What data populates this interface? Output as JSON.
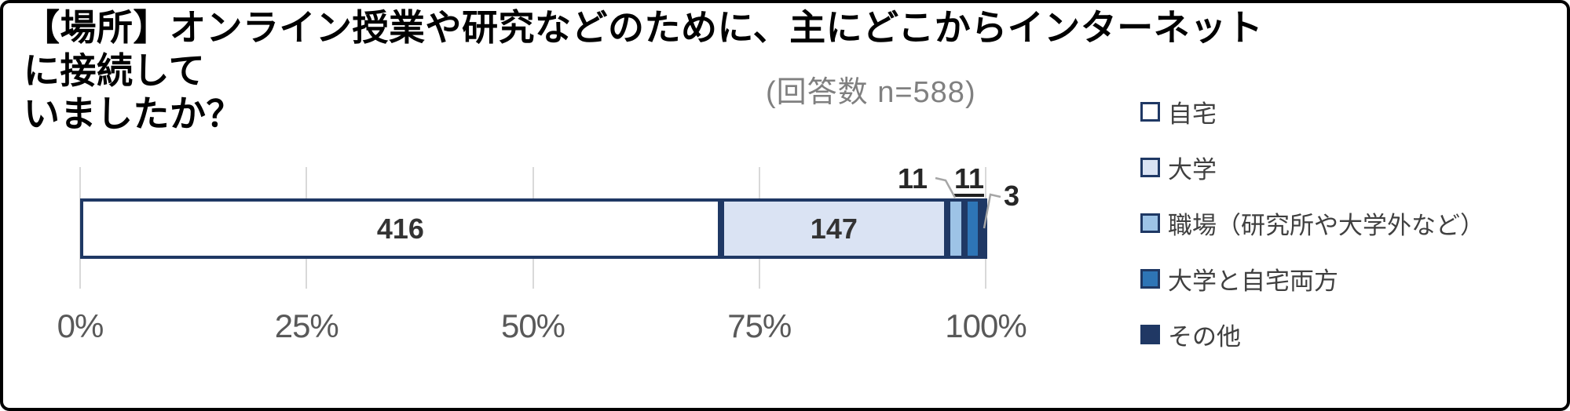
{
  "header": {
    "title_line1": "【場所】オンライン授業や研究などのために、主にどこからインターネットに接続して",
    "title_line2": "いましたか？",
    "subtitle": "(回答数 n=588)"
  },
  "chart_data": {
    "type": "bar",
    "orientation": "horizontal_stacked",
    "title": "【場所】オンライン授業や研究などのために、主にどこからインターネットに接続していましたか？",
    "subtitle": "(回答数 n=588)",
    "n_total": 588,
    "series": [
      {
        "name": "自宅",
        "value": 416,
        "fill": "#FFFFFF",
        "label_position": "inside"
      },
      {
        "name": "大学",
        "value": 147,
        "fill": "#DAE3F3",
        "label_position": "inside"
      },
      {
        "name": "職場（研究所や大学外など）",
        "value": 11,
        "fill": "#9DC3E6",
        "label_position": "outside"
      },
      {
        "name": "大学と自宅両方",
        "value": 11,
        "fill": "#2E75B6",
        "label_position": "outside"
      },
      {
        "name": "その他",
        "value": 3,
        "fill": "#203864",
        "label_position": "outside"
      }
    ],
    "x_ticks": [
      "0%",
      "25%",
      "50%",
      "75%",
      "100%"
    ],
    "xlim": [
      0,
      100
    ],
    "grid": true,
    "legend_position": "right",
    "border_color": "#1F3864",
    "colors": {
      "inside_label": "#333333",
      "outside_label": "#262626",
      "tick": "#595959",
      "subtitle": "#808080",
      "gridline": "#D9D9D9",
      "leader_line": "#A6A6A6",
      "frame_border": "#000000"
    }
  }
}
